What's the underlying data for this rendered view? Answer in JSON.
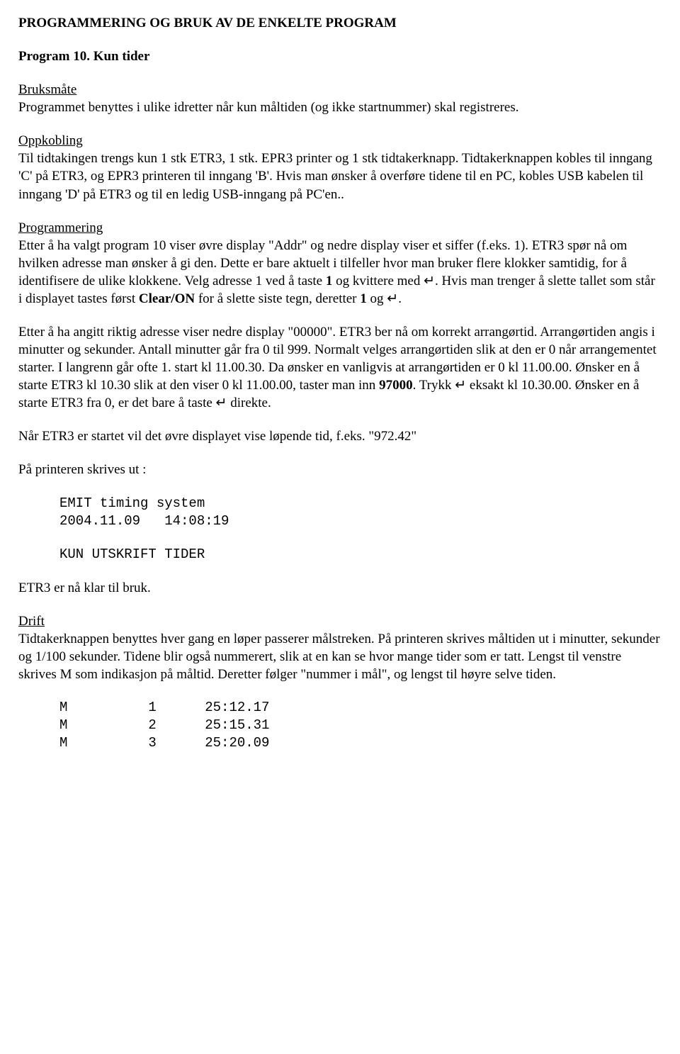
{
  "title": "PROGRAMMERING OG BRUK AV DE ENKELTE PROGRAM",
  "subtitle": "Program 10. Kun tider",
  "sub_bruksmate": "Bruksmåte",
  "p_bruksmate": "Programmet benyttes i ulike idretter når kun måltiden (og ikke startnummer) skal registreres.",
  "sub_oppkobling": "Oppkobling",
  "p_oppkobling": "Til tidtakingen trengs kun 1 stk ETR3, 1 stk. EPR3 printer og 1 stk tidtakerknapp. Tidtakerknappen kobles til inngang 'C' på ETR3, og EPR3 printeren til inngang 'B'. Hvis man ønsker å overføre tidene til en PC, kobles USB kabelen til inngang 'D' på ETR3 og til en ledig USB-inngang på PC'en..",
  "sub_programmering": "Programmering",
  "p_prog_1a": "Etter å ha valgt program 10 viser øvre display \"Addr\" og nedre display viser et siffer (f.eks. 1). ETR3 spør nå om hvilken adresse man ønsker å gi den. Dette er bare aktuelt i tilfeller hvor man bruker flere klokker samtidig, for å identifisere de ulike klokkene. Velg adresse 1 ved å taste ",
  "p_prog_1b": " og kvittere med ",
  "p_prog_1c": ". Hvis man trenger å slette tallet som står i displayet tastes først ",
  "p_prog_1d": " for å slette siste tegn, deretter ",
  "p_prog_1e": " og ",
  "p_prog_1f": ".",
  "bold_1": "1",
  "bold_clearon": "Clear/ON",
  "enter_sym": "↵",
  "p_prog_2a": "Etter å ha angitt riktig adresse viser nedre display \"00000\". ETR3 ber nå om korrekt arrangørtid.  Arrangørtiden angis i minutter og sekunder.  Antall minutter går fra 0 til 999. Normalt velges arrangørtiden slik at den er 0 når arrangementet starter.  I langrenn går ofte 1. start kl 11.00.30.  Da ønsker en vanligvis at arrangørtiden er 0 kl 11.00.00.  Ønsker en å starte ETR3  kl 10.30 slik at den viser 0 kl 11.00.00, taster man inn ",
  "p_prog_2b": ".  Trykk ",
  "p_prog_2c": " eksakt kl 10.30.00.  Ønsker en å starte  ETR3 fra 0, er det bare å taste ",
  "p_prog_2d": " direkte.",
  "bold_97000": "97000",
  "p_started": "Når ETR3 er startet vil det øvre displayet vise løpende tid, f.eks. \"972.42\"",
  "p_printer_ut": "På printeren skrives ut :",
  "mono1_l1": "EMIT timing system",
  "mono1_l2": "2004.11.09   14:08:19",
  "mono1_l3": "KUN UTSKRIFT TIDER",
  "p_klar": "ETR3 er nå klar til bruk.",
  "sub_drift": "Drift",
  "p_drift": "Tidtakerknappen benyttes hver gang en løper passerer målstreken.  På printeren skrives måltiden ut i minutter, sekunder og 1/100 sekunder.  Tidene blir også nummerert, slik at en kan se hvor mange tider som er tatt.  Lengst til venstre skrives M som indikasjon på måltid.  Deretter følger \"nummer i mål\", og lengst til høyre selve tiden.",
  "mono2_l1": "M          1      25:12.17",
  "mono2_l2": "M          2      25:15.31",
  "mono2_l3": "M          3      25:20.09"
}
